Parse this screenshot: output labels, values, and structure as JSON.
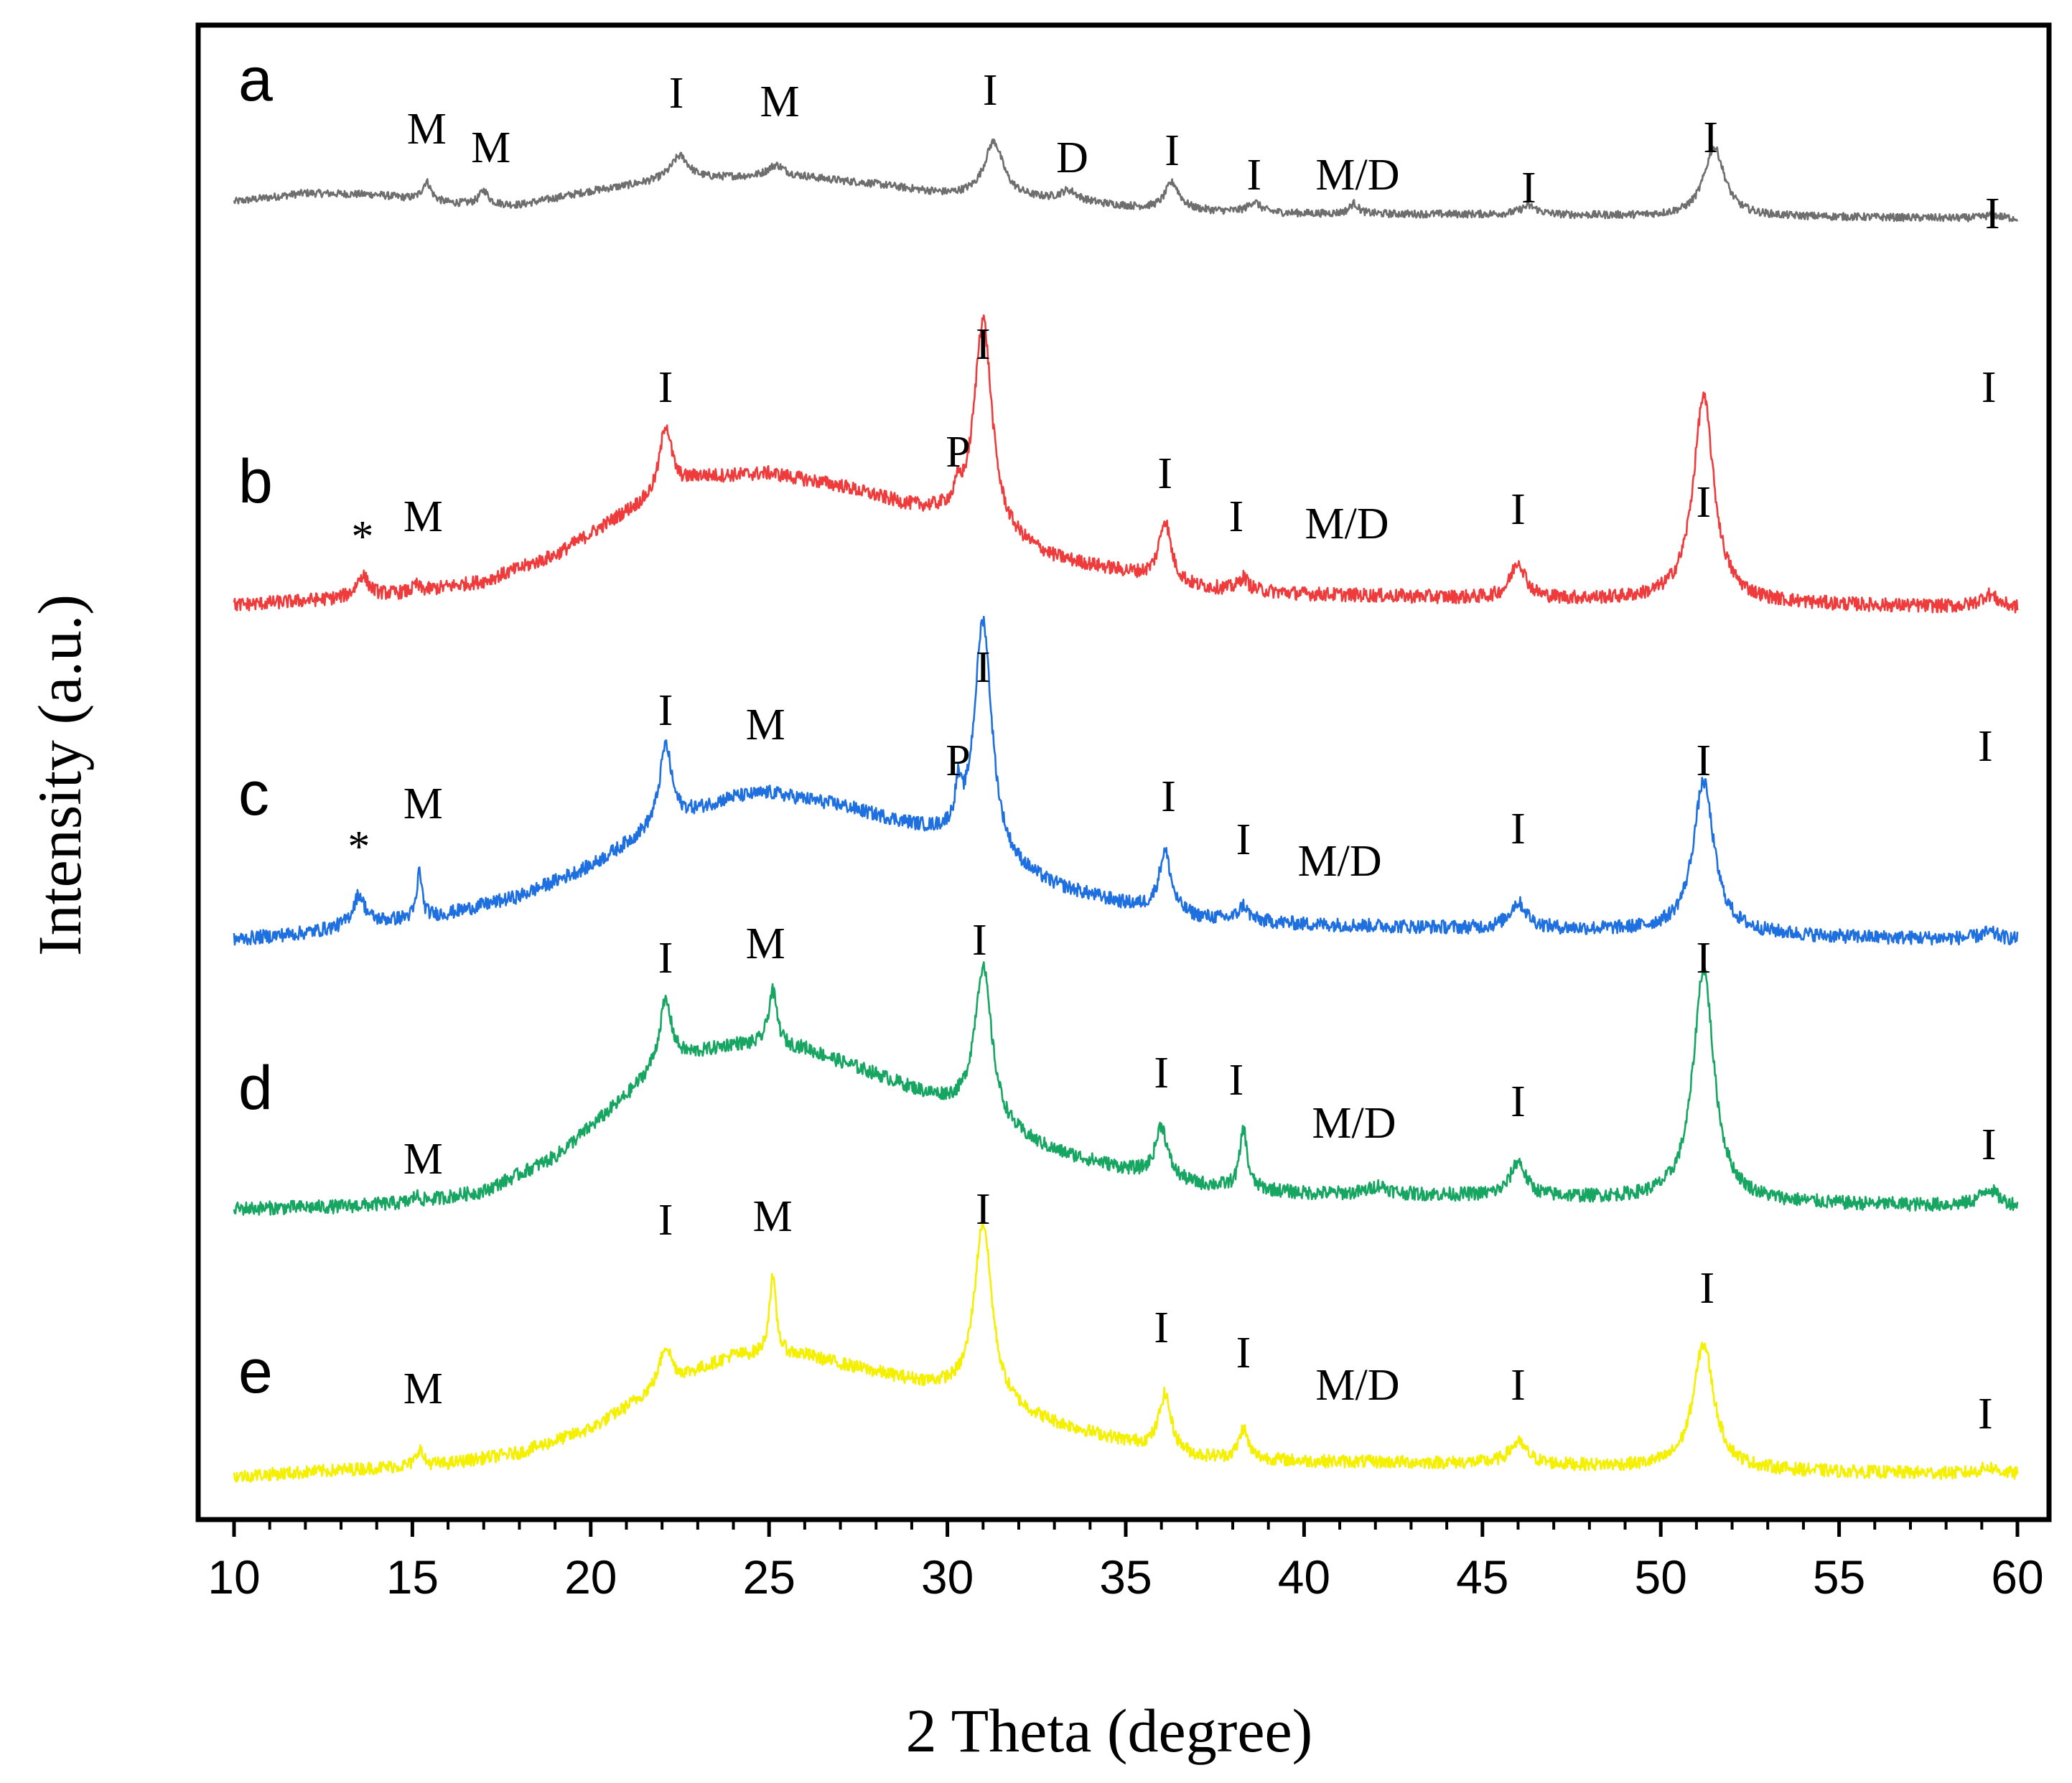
{
  "chart_data": {
    "type": "line",
    "title": "",
    "xlabel": "2 Theta (degree)",
    "ylabel": "Intensity (a.u.)",
    "xlim": [
      10,
      60
    ],
    "xticks": [
      10,
      15,
      20,
      25,
      30,
      35,
      40,
      45,
      50,
      55,
      60
    ],
    "tick_labels": [
      "10",
      "15",
      "20",
      "25",
      "30",
      "35",
      "40",
      "45",
      "50",
      "55",
      "60"
    ],
    "series": [
      {
        "name": "a",
        "color": "#6e6e6e",
        "baseline": [
          [
            10,
            1.0
          ],
          [
            12,
            1.5
          ],
          [
            14,
            1.4
          ],
          [
            16,
            0.9
          ],
          [
            18,
            0.8
          ],
          [
            20,
            1.6
          ],
          [
            22,
            2.2
          ],
          [
            24,
            2.4
          ],
          [
            26,
            2.4
          ],
          [
            28,
            2.0
          ],
          [
            30,
            1.4
          ],
          [
            32,
            1.2
          ],
          [
            34,
            0.9
          ],
          [
            36,
            0.5
          ],
          [
            40,
            0.3
          ],
          [
            45,
            0.25
          ],
          [
            50,
            0.15
          ],
          [
            55,
            0.1
          ],
          [
            60,
            0.0
          ]
        ],
        "peaks": [
          [
            15.4,
            1.1,
            0.15
          ],
          [
            17.0,
            0.8,
            0.15
          ],
          [
            22.5,
            1.4,
            0.3
          ],
          [
            25.2,
            0.7,
            0.3
          ],
          [
            31.3,
            3.2,
            0.32
          ],
          [
            33.4,
            0.6,
            0.3
          ],
          [
            36.3,
            1.6,
            0.25
          ],
          [
            38.6,
            0.6,
            0.2
          ],
          [
            41.4,
            0.6,
            0.15
          ],
          [
            46.3,
            0.5,
            0.3
          ],
          [
            51.5,
            4.0,
            0.35
          ],
          [
            59.3,
            0.2,
            0.3
          ]
        ],
        "noise": 0.22
      },
      {
        "name": "b",
        "color": "#ef3b3b",
        "baseline": [
          [
            10,
            0.3
          ],
          [
            13,
            0.6
          ],
          [
            15,
            0.9
          ],
          [
            17,
            1.4
          ],
          [
            19,
            2.6
          ],
          [
            21,
            4.6
          ],
          [
            23,
            6.2
          ],
          [
            25,
            6.4
          ],
          [
            27,
            5.8
          ],
          [
            29,
            4.8
          ],
          [
            30,
            4.4
          ],
          [
            31,
            3.6
          ],
          [
            33,
            2.4
          ],
          [
            35,
            1.8
          ],
          [
            37,
            1.1
          ],
          [
            40,
            0.8
          ],
          [
            45,
            0.6
          ],
          [
            50,
            0.5
          ],
          [
            55,
            0.3
          ],
          [
            60,
            0.15
          ]
        ],
        "peaks": [
          [
            13.6,
            1.0,
            0.2
          ],
          [
            15.1,
            0.3,
            0.1
          ],
          [
            22.1,
            3.2,
            0.2
          ],
          [
            30.3,
            0.8,
            0.1
          ],
          [
            31.0,
            10.0,
            0.3
          ],
          [
            36.1,
            2.8,
            0.2
          ],
          [
            38.3,
            0.6,
            0.15
          ],
          [
            46.0,
            1.7,
            0.25
          ],
          [
            51.2,
            9.5,
            0.35
          ],
          [
            59.2,
            0.6,
            0.3
          ]
        ],
        "noise": 0.32
      },
      {
        "name": "c",
        "color": "#1e6fe0",
        "baseline": [
          [
            10,
            0.2
          ],
          [
            12,
            0.5
          ],
          [
            14,
            1.0
          ],
          [
            16,
            1.4
          ],
          [
            18,
            2.2
          ],
          [
            20,
            3.6
          ],
          [
            22,
            5.6
          ],
          [
            24,
            6.8
          ],
          [
            25,
            7.0
          ],
          [
            27,
            6.4
          ],
          [
            29,
            5.4
          ],
          [
            30,
            4.8
          ],
          [
            31,
            3.8
          ],
          [
            33,
            2.6
          ],
          [
            35,
            1.8
          ],
          [
            37,
            1.2
          ],
          [
            40,
            0.9
          ],
          [
            45,
            0.7
          ],
          [
            50,
            0.6
          ],
          [
            55,
            0.3
          ],
          [
            60,
            0.2
          ]
        ],
        "peaks": [
          [
            13.5,
            1.4,
            0.2
          ],
          [
            15.2,
            2.2,
            0.08
          ],
          [
            22.1,
            3.6,
            0.2
          ],
          [
            30.3,
            1.8,
            0.1
          ],
          [
            31.0,
            11.2,
            0.3
          ],
          [
            36.1,
            2.8,
            0.2
          ],
          [
            38.3,
            0.7,
            0.15
          ],
          [
            46.0,
            1.2,
            0.3
          ],
          [
            51.2,
            7.0,
            0.35
          ],
          [
            59.2,
            0.3,
            0.3
          ]
        ],
        "noise": 0.32
      },
      {
        "name": "d",
        "color": "#17a662",
        "baseline": [
          [
            10,
            0.2
          ],
          [
            13,
            0.3
          ],
          [
            15,
            0.5
          ],
          [
            17,
            1.0
          ],
          [
            19,
            2.6
          ],
          [
            21,
            5.4
          ],
          [
            22,
            7.0
          ],
          [
            24,
            7.8
          ],
          [
            26,
            7.6
          ],
          [
            28,
            6.4
          ],
          [
            30,
            5.0
          ],
          [
            31,
            4.0
          ],
          [
            33,
            2.8
          ],
          [
            35,
            2.0
          ],
          [
            37,
            1.3
          ],
          [
            40,
            0.9
          ],
          [
            45,
            0.8
          ],
          [
            50,
            0.6
          ],
          [
            55,
            0.4
          ],
          [
            60,
            0.3
          ]
        ],
        "peaks": [
          [
            15.1,
            0.3,
            0.1
          ],
          [
            22.1,
            2.8,
            0.2
          ],
          [
            25.1,
            2.6,
            0.15
          ],
          [
            31.0,
            7.4,
            0.3
          ],
          [
            36.0,
            2.4,
            0.2
          ],
          [
            38.3,
            2.8,
            0.12
          ],
          [
            42.1,
            0.4,
            0.3
          ],
          [
            46.0,
            1.6,
            0.25
          ],
          [
            51.2,
            10.8,
            0.35
          ],
          [
            59.2,
            0.8,
            0.3
          ]
        ],
        "noise": 0.32
      },
      {
        "name": "e",
        "color": "#f4f000",
        "baseline": [
          [
            10,
            0.2
          ],
          [
            13,
            0.5
          ],
          [
            16,
            0.8
          ],
          [
            18,
            1.3
          ],
          [
            20,
            2.4
          ],
          [
            22,
            4.4
          ],
          [
            24,
            5.8
          ],
          [
            26,
            5.8
          ],
          [
            28,
            5.0
          ],
          [
            30,
            4.2
          ],
          [
            31,
            3.6
          ],
          [
            33,
            2.6
          ],
          [
            35,
            1.8
          ],
          [
            37,
            1.1
          ],
          [
            40,
            0.9
          ],
          [
            45,
            0.8
          ],
          [
            50,
            0.6
          ],
          [
            55,
            0.4
          ],
          [
            60,
            0.3
          ]
        ],
        "peaks": [
          [
            15.2,
            0.8,
            0.1
          ],
          [
            22.1,
            1.8,
            0.2
          ],
          [
            25.1,
            3.6,
            0.12
          ],
          [
            31.0,
            8.4,
            0.3
          ],
          [
            36.1,
            2.6,
            0.2
          ],
          [
            38.3,
            1.4,
            0.15
          ],
          [
            46.0,
            1.0,
            0.3
          ],
          [
            51.2,
            5.8,
            0.35
          ],
          [
            59.2,
            0.3,
            0.3
          ]
        ],
        "noise": 0.3
      }
    ],
    "annotations": [
      {
        "series": "a",
        "text": "M",
        "x": 15.4
      },
      {
        "series": "a",
        "text": "M",
        "x": 17.2
      },
      {
        "series": "a",
        "text": "I",
        "x": 22.4
      },
      {
        "series": "a",
        "text": "M",
        "x": 25.3
      },
      {
        "series": "a",
        "text": "I",
        "x": 31.2
      },
      {
        "series": "a",
        "text": "D",
        "x": 33.5
      },
      {
        "series": "a",
        "text": "I",
        "x": 36.3
      },
      {
        "series": "a",
        "text": "I",
        "x": 38.6
      },
      {
        "series": "a",
        "text": "M/D",
        "x": 41.5
      },
      {
        "series": "a",
        "text": "I",
        "x": 46.3
      },
      {
        "series": "a",
        "text": "I",
        "x": 51.4
      },
      {
        "series": "a",
        "text": "I",
        "x": 59.3
      },
      {
        "series": "b",
        "text": "*",
        "x": 13.6
      },
      {
        "series": "b",
        "text": "M",
        "x": 15.3
      },
      {
        "series": "b",
        "text": "I",
        "x": 22.1
      },
      {
        "series": "b",
        "text": "P",
        "x": 30.3
      },
      {
        "series": "b",
        "text": "I",
        "x": 31.0
      },
      {
        "series": "b",
        "text": "I",
        "x": 36.1
      },
      {
        "series": "b",
        "text": "I",
        "x": 38.1
      },
      {
        "series": "b",
        "text": "M/D",
        "x": 41.2
      },
      {
        "series": "b",
        "text": "I",
        "x": 46.0
      },
      {
        "series": "b",
        "text": "I",
        "x": 51.2
      },
      {
        "series": "b",
        "text": "I",
        "x": 59.2
      },
      {
        "series": "c",
        "text": "*",
        "x": 13.5
      },
      {
        "series": "c",
        "text": "M",
        "x": 15.3
      },
      {
        "series": "c",
        "text": "I",
        "x": 22.1
      },
      {
        "series": "c",
        "text": "M",
        "x": 24.9
      },
      {
        "series": "c",
        "text": "P",
        "x": 30.3
      },
      {
        "series": "c",
        "text": "I",
        "x": 31.0
      },
      {
        "series": "c",
        "text": "I",
        "x": 36.2
      },
      {
        "series": "c",
        "text": "I",
        "x": 38.3
      },
      {
        "series": "c",
        "text": "M/D",
        "x": 41.0
      },
      {
        "series": "c",
        "text": "I",
        "x": 46.0
      },
      {
        "series": "c",
        "text": "I",
        "x": 51.2
      },
      {
        "series": "c",
        "text": "I",
        "x": 59.1
      },
      {
        "series": "d",
        "text": "M",
        "x": 15.3
      },
      {
        "series": "d",
        "text": "I",
        "x": 22.1
      },
      {
        "series": "d",
        "text": "M",
        "x": 24.9
      },
      {
        "series": "d",
        "text": "I",
        "x": 30.9
      },
      {
        "series": "d",
        "text": "I",
        "x": 36.0
      },
      {
        "series": "d",
        "text": "I",
        "x": 38.1
      },
      {
        "series": "d",
        "text": "M/D",
        "x": 41.4
      },
      {
        "series": "d",
        "text": "I",
        "x": 46.0
      },
      {
        "series": "d",
        "text": "I",
        "x": 51.2
      },
      {
        "series": "d",
        "text": "I",
        "x": 59.2
      },
      {
        "series": "e",
        "text": "M",
        "x": 15.3
      },
      {
        "series": "e",
        "text": "I",
        "x": 22.1
      },
      {
        "series": "e",
        "text": "M",
        "x": 25.1
      },
      {
        "series": "e",
        "text": "I",
        "x": 31.0
      },
      {
        "series": "e",
        "text": "I",
        "x": 36.0
      },
      {
        "series": "e",
        "text": "I",
        "x": 38.3
      },
      {
        "series": "e",
        "text": "M/D",
        "x": 41.5
      },
      {
        "series": "e",
        "text": "I",
        "x": 46.0
      },
      {
        "series": "e",
        "text": "I",
        "x": 51.3
      },
      {
        "series": "e",
        "text": "I",
        "x": 59.1
      }
    ],
    "grid": false,
    "legend": "none"
  }
}
